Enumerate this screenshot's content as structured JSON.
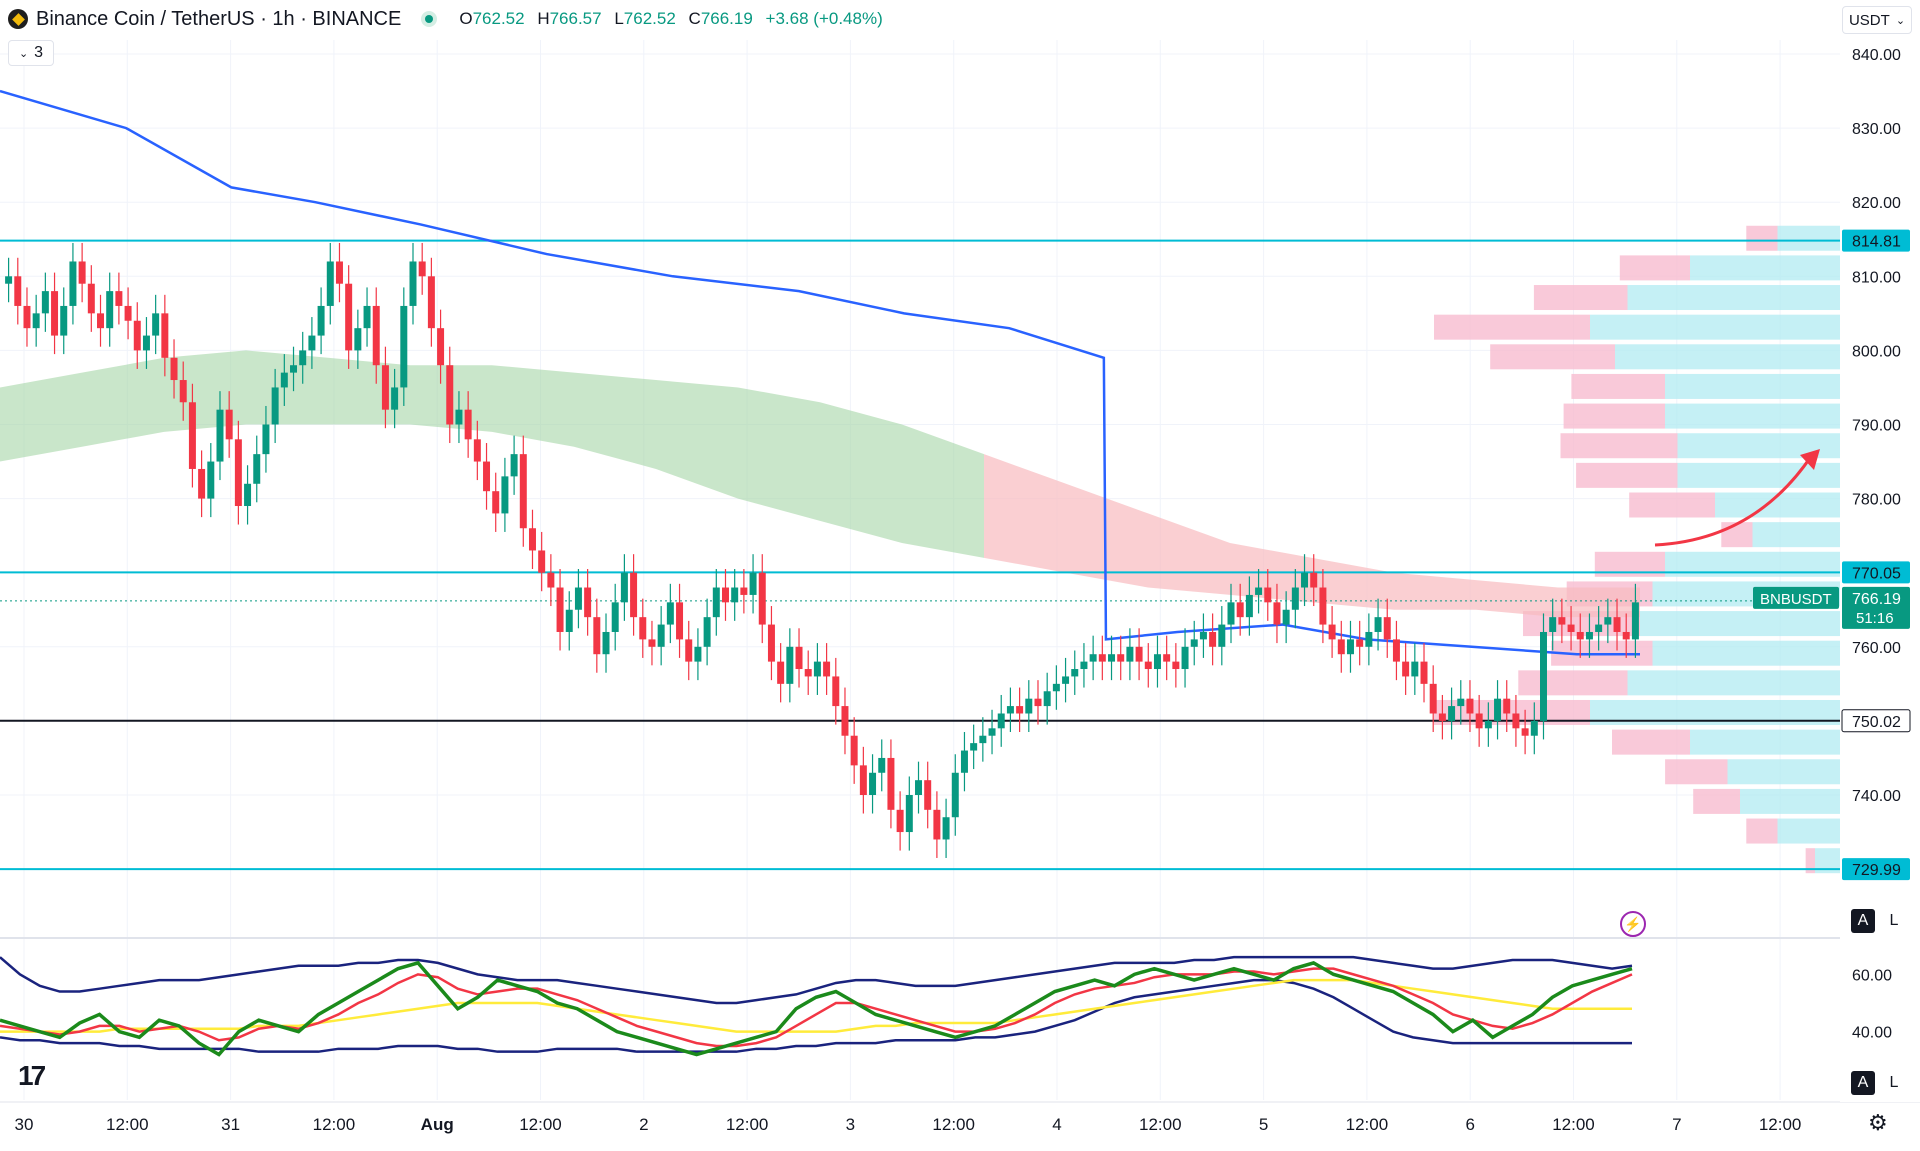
{
  "header": {
    "symbol_title": "Binance Coin / TetherUS · 1h · BINANCE",
    "open_label": "O",
    "open": "762.52",
    "high_label": "H",
    "high": "766.57",
    "low_label": "L",
    "low": "762.52",
    "close_label": "C",
    "close": "766.19",
    "change": "+3.68 (+0.48%)",
    "indicator_count": "3",
    "currency": "USDT"
  },
  "price_tag": {
    "symbol": "BNBUSDT",
    "price": "766.19",
    "countdown": "51:16"
  },
  "scale_buttons": {
    "auto": "A",
    "log": "L"
  },
  "colors": {
    "up": "#089981",
    "down": "#f23645",
    "level_line": "#00bcd4",
    "support_line": "#131722",
    "vwap": "#2962ff",
    "cloud_bull": "#a5d6a7",
    "cloud_bear": "#f8bbbf",
    "vp_up": "#b2ebf2",
    "vp_down": "#f8bbd0",
    "rsi": "#1b8a1b",
    "rsi_signal": "#f23645",
    "rsi_ma": "#ffeb3b",
    "bands": "#1a237e",
    "arrow": "#f23645"
  },
  "chart_data": {
    "type": "candlestick",
    "ylim": [
      724,
      843
    ],
    "y_ticks": [
      "840.00",
      "830.00",
      "820.00",
      "810.00",
      "800.00",
      "790.00",
      "780.00",
      "770.00",
      "760.00",
      "750.00",
      "740.00"
    ],
    "x_ticks": [
      "30",
      "12:00",
      "31",
      "12:00",
      "Aug",
      "12:00",
      "2",
      "12:00",
      "3",
      "12:00",
      "4",
      "12:00",
      "5",
      "12:00",
      "6",
      "12:00",
      "7",
      "12:00"
    ],
    "levels": [
      {
        "label": "814.81",
        "value": 814.81,
        "style": "cyan"
      },
      {
        "label": "770.05",
        "value": 770.05,
        "style": "cyan"
      },
      {
        "label": "750.02",
        "value": 750.02,
        "style": "black"
      },
      {
        "label": "729.99",
        "value": 729.99,
        "style": "cyan"
      }
    ],
    "last_price": 766.19,
    "closes": [
      810,
      806,
      803,
      805,
      808,
      802,
      806,
      812,
      809,
      805,
      803,
      808,
      806,
      804,
      800,
      802,
      805,
      799,
      796,
      793,
      784,
      780,
      785,
      792,
      788,
      779,
      782,
      786,
      790,
      795,
      797,
      798,
      800,
      802,
      806,
      812,
      809,
      800,
      803,
      806,
      798,
      792,
      795,
      806,
      812,
      810,
      803,
      798,
      790,
      792,
      788,
      785,
      781,
      778,
      783,
      786,
      776,
      773,
      770,
      768,
      762,
      765,
      768,
      764,
      759,
      762,
      766,
      770,
      764,
      761,
      760,
      763,
      766,
      761,
      758,
      760,
      764,
      768,
      766,
      768,
      767,
      770,
      763,
      758,
      755,
      760,
      757,
      756,
      758,
      756,
      752,
      748,
      744,
      740,
      743,
      745,
      738,
      735,
      740,
      742,
      738,
      734,
      737,
      743,
      746,
      747,
      748,
      749,
      751,
      752,
      751,
      753,
      752,
      754,
      755,
      756,
      757,
      758,
      759,
      758,
      759,
      758,
      760,
      758,
      757,
      759,
      758,
      757,
      760,
      761,
      762,
      760,
      763,
      766,
      764,
      767,
      768,
      766,
      763,
      765,
      768,
      770,
      768,
      763,
      761,
      759,
      761,
      760,
      762,
      764,
      761,
      758,
      756,
      758,
      755,
      751,
      750,
      752,
      753,
      751,
      749,
      750,
      753,
      751,
      749,
      748,
      750,
      762,
      764,
      763,
      762,
      761,
      762,
      763,
      764,
      762,
      761,
      766
    ],
    "vwap_line": [
      [
        0,
        835
      ],
      [
        60,
        830
      ],
      [
        110,
        822
      ],
      [
        150,
        820
      ],
      [
        200,
        817
      ],
      [
        260,
        813
      ],
      [
        320,
        810
      ],
      [
        380,
        808
      ],
      [
        430,
        805
      ],
      [
        480,
        803
      ],
      [
        525,
        799
      ],
      [
        526,
        761
      ],
      [
        560,
        762
      ],
      [
        610,
        763
      ],
      [
        650,
        761
      ],
      [
        700,
        760
      ],
      [
        750,
        759
      ],
      [
        780,
        759
      ]
    ],
    "cloud_upper": [
      795,
      797,
      799,
      800,
      799,
      798,
      798,
      797,
      796,
      795,
      793,
      790,
      786,
      782,
      778,
      774,
      772,
      770,
      769,
      768,
      768
    ],
    "cloud_lower": [
      785,
      787,
      789,
      790,
      790,
      790,
      789,
      787,
      784,
      780,
      777,
      774,
      772,
      770,
      768,
      767,
      766,
      765,
      765,
      764,
      764
    ],
    "volume_profile": [
      {
        "price": 815,
        "up": 0.25,
        "down": 0.2
      },
      {
        "price": 811,
        "up": 0.6,
        "down": 0.45
      },
      {
        "price": 807,
        "up": 0.85,
        "down": 0.6
      },
      {
        "price": 803,
        "up": 1.0,
        "down": 1.0
      },
      {
        "price": 799,
        "up": 0.9,
        "down": 0.8
      },
      {
        "price": 795,
        "up": 0.7,
        "down": 0.6
      },
      {
        "price": 791,
        "up": 0.7,
        "down": 0.65
      },
      {
        "price": 787,
        "up": 0.65,
        "down": 0.75
      },
      {
        "price": 783,
        "up": 0.65,
        "down": 0.65
      },
      {
        "price": 779,
        "up": 0.5,
        "down": 0.55
      },
      {
        "price": 775,
        "up": 0.35,
        "down": 0.2
      },
      {
        "price": 771,
        "up": 0.7,
        "down": 0.45
      },
      {
        "price": 767,
        "up": 0.75,
        "down": 0.55
      },
      {
        "price": 763,
        "up": 0.8,
        "down": 0.75
      },
      {
        "price": 759,
        "up": 0.75,
        "down": 0.65
      },
      {
        "price": 755,
        "up": 0.85,
        "down": 0.7
      },
      {
        "price": 751,
        "up": 1.0,
        "down": 1.0
      },
      {
        "price": 747,
        "up": 0.6,
        "down": 0.5
      },
      {
        "price": 743,
        "up": 0.45,
        "down": 0.4
      },
      {
        "price": 739,
        "up": 0.4,
        "down": 0.3
      },
      {
        "price": 735,
        "up": 0.25,
        "down": 0.2
      },
      {
        "price": 731,
        "up": 0.1,
        "down": 0.06
      }
    ],
    "oscillator": {
      "ylim": [
        28,
        72
      ],
      "y_ticks": [
        "60.00",
        "40.00"
      ],
      "rsi": [
        44,
        42,
        40,
        38,
        43,
        46,
        40,
        38,
        44,
        42,
        36,
        32,
        40,
        44,
        42,
        40,
        46,
        50,
        54,
        58,
        62,
        64,
        56,
        48,
        52,
        58,
        56,
        54,
        50,
        48,
        44,
        40,
        38,
        36,
        34,
        32,
        34,
        36,
        38,
        40,
        48,
        52,
        54,
        50,
        46,
        44,
        42,
        40,
        38,
        40,
        42,
        46,
        50,
        54,
        56,
        58,
        56,
        60,
        62,
        60,
        58,
        60,
        62,
        60,
        58,
        62,
        64,
        60,
        58,
        56,
        54,
        50,
        46,
        40,
        44,
        38,
        42,
        46,
        52,
        56,
        58,
        60,
        62
      ],
      "signal": [
        42,
        41,
        40,
        39,
        40,
        42,
        42,
        40,
        41,
        42,
        40,
        37,
        38,
        41,
        42,
        41,
        43,
        46,
        50,
        53,
        57,
        60,
        59,
        55,
        53,
        54,
        55,
        55,
        53,
        51,
        48,
        45,
        42,
        40,
        38,
        36,
        35,
        35,
        36,
        38,
        42,
        46,
        50,
        50,
        48,
        46,
        44,
        42,
        40,
        40,
        41,
        43,
        46,
        50,
        53,
        55,
        56,
        57,
        59,
        60,
        60,
        60,
        61,
        61,
        60,
        61,
        62,
        62,
        60,
        58,
        56,
        53,
        50,
        46,
        44,
        42,
        41,
        43,
        46,
        50,
        54,
        57,
        60
      ],
      "ma": [
        40,
        40,
        40,
        40,
        40,
        40,
        41,
        41,
        41,
        41,
        41,
        41,
        41,
        42,
        42,
        42,
        43,
        44,
        45,
        46,
        47,
        48,
        49,
        50,
        50,
        50,
        50,
        50,
        49,
        48,
        47,
        46,
        45,
        44,
        43,
        42,
        41,
        40,
        40,
        40,
        40,
        40,
        40,
        41,
        42,
        42,
        43,
        43,
        43,
        43,
        43,
        44,
        45,
        46,
        47,
        48,
        49,
        50,
        51,
        52,
        53,
        54,
        55,
        56,
        57,
        58,
        58,
        58,
        58,
        57,
        56,
        55,
        54,
        53,
        52,
        51,
        50,
        49,
        48,
        48,
        48,
        48,
        48
      ],
      "upper": [
        66,
        60,
        56,
        54,
        54,
        55,
        56,
        57,
        58,
        58,
        58,
        59,
        60,
        61,
        62,
        63,
        63,
        63,
        64,
        64,
        65,
        65,
        64,
        62,
        60,
        59,
        58,
        58,
        58,
        57,
        56,
        55,
        54,
        53,
        52,
        51,
        50,
        50,
        51,
        52,
        53,
        55,
        57,
        58,
        58,
        57,
        56,
        56,
        56,
        57,
        58,
        59,
        60,
        61,
        62,
        63,
        64,
        64,
        64,
        64,
        65,
        65,
        66,
        66,
        66,
        66,
        66,
        66,
        66,
        65,
        64,
        63,
        62,
        62,
        63,
        64,
        65,
        65,
        65,
        64,
        63,
        62,
        63
      ],
      "lower": [
        38,
        37,
        37,
        36,
        36,
        36,
        35,
        35,
        34,
        34,
        34,
        34,
        34,
        33,
        33,
        33,
        33,
        34,
        34,
        34,
        35,
        35,
        35,
        34,
        34,
        33,
        33,
        33,
        34,
        34,
        34,
        34,
        33,
        33,
        33,
        33,
        33,
        33,
        34,
        34,
        35,
        35,
        36,
        36,
        36,
        37,
        37,
        37,
        37,
        38,
        38,
        39,
        40,
        42,
        44,
        47,
        50,
        52,
        53,
        54,
        55,
        56,
        57,
        58,
        58,
        57,
        55,
        52,
        48,
        44,
        40,
        38,
        37,
        36,
        36,
        36,
        36,
        36,
        36,
        36,
        36,
        36,
        36
      ]
    }
  }
}
